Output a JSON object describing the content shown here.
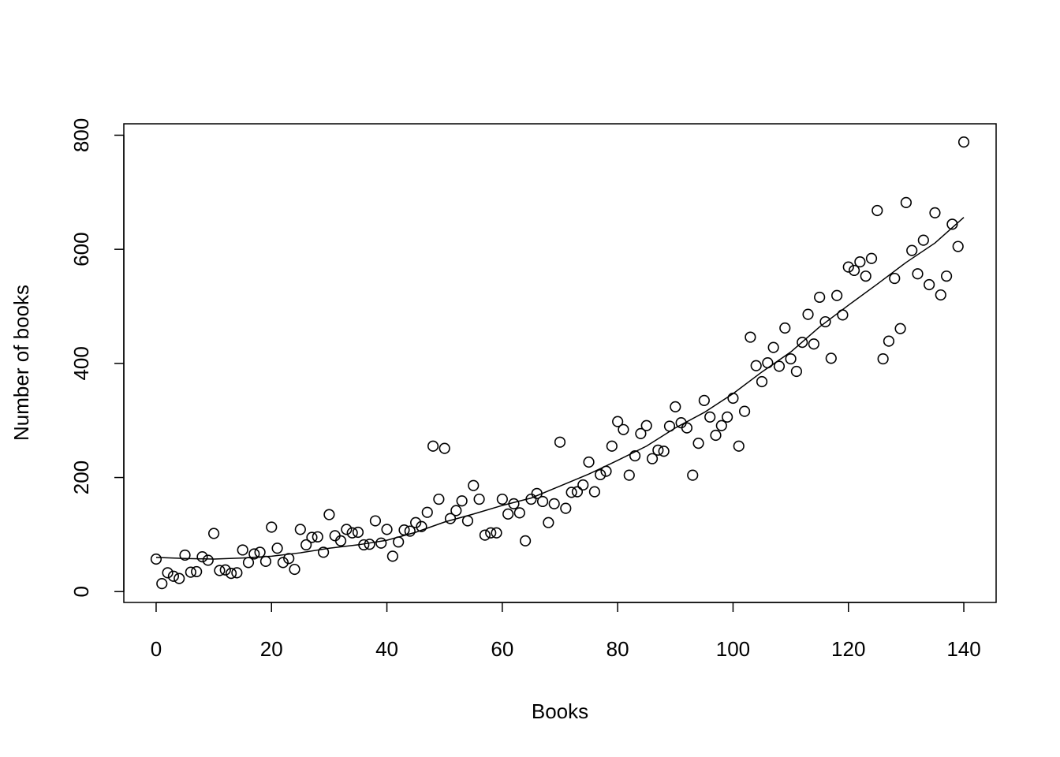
{
  "chart_data": {
    "type": "scatter",
    "xlabel": "Books",
    "ylabel": "Number of books",
    "xlim": [
      -5.6,
      145.6
    ],
    "ylim": [
      -19,
      820
    ],
    "xticks": [
      0,
      20,
      40,
      60,
      80,
      100,
      120,
      140
    ],
    "yticks": [
      0,
      200,
      400,
      600,
      800
    ],
    "xtick_labels": [
      "0",
      "20",
      "40",
      "60",
      "80",
      "100",
      "120",
      "140"
    ],
    "ytick_labels": [
      "0",
      "200",
      "400",
      "600",
      "800"
    ],
    "grid": false,
    "legend": "none",
    "marker": "open-circle",
    "points": [
      [
        0,
        57
      ],
      [
        1,
        14
      ],
      [
        2,
        33
      ],
      [
        3,
        27
      ],
      [
        4,
        23
      ],
      [
        5,
        64
      ],
      [
        6,
        34
      ],
      [
        7,
        35
      ],
      [
        8,
        61
      ],
      [
        9,
        55
      ],
      [
        10,
        102
      ],
      [
        11,
        37
      ],
      [
        12,
        38
      ],
      [
        13,
        32
      ],
      [
        14,
        33
      ],
      [
        15,
        73
      ],
      [
        16,
        51
      ],
      [
        17,
        66
      ],
      [
        18,
        69
      ],
      [
        19,
        53
      ],
      [
        20,
        113
      ],
      [
        21,
        76
      ],
      [
        22,
        51
      ],
      [
        23,
        58
      ],
      [
        24,
        39
      ],
      [
        25,
        109
      ],
      [
        26,
        82
      ],
      [
        27,
        95
      ],
      [
        28,
        96
      ],
      [
        29,
        69
      ],
      [
        30,
        135
      ],
      [
        31,
        98
      ],
      [
        32,
        89
      ],
      [
        33,
        109
      ],
      [
        34,
        103
      ],
      [
        35,
        104
      ],
      [
        36,
        82
      ],
      [
        37,
        83
      ],
      [
        38,
        124
      ],
      [
        39,
        85
      ],
      [
        40,
        109
      ],
      [
        41,
        62
      ],
      [
        42,
        87
      ],
      [
        43,
        108
      ],
      [
        44,
        106
      ],
      [
        45,
        121
      ],
      [
        46,
        114
      ],
      [
        47,
        139
      ],
      [
        48,
        255
      ],
      [
        49,
        162
      ],
      [
        50,
        251
      ],
      [
        51,
        128
      ],
      [
        52,
        142
      ],
      [
        53,
        159
      ],
      [
        54,
        124
      ],
      [
        55,
        186
      ],
      [
        56,
        162
      ],
      [
        57,
        99
      ],
      [
        58,
        103
      ],
      [
        59,
        103
      ],
      [
        60,
        162
      ],
      [
        61,
        136
      ],
      [
        62,
        154
      ],
      [
        63,
        138
      ],
      [
        64,
        89
      ],
      [
        65,
        162
      ],
      [
        66,
        172
      ],
      [
        67,
        158
      ],
      [
        68,
        121
      ],
      [
        69,
        154
      ],
      [
        70,
        262
      ],
      [
        71,
        146
      ],
      [
        72,
        174
      ],
      [
        73,
        175
      ],
      [
        74,
        187
      ],
      [
        75,
        227
      ],
      [
        76,
        175
      ],
      [
        77,
        205
      ],
      [
        78,
        211
      ],
      [
        79,
        255
      ],
      [
        80,
        298
      ],
      [
        81,
        284
      ],
      [
        82,
        204
      ],
      [
        83,
        238
      ],
      [
        84,
        277
      ],
      [
        85,
        291
      ],
      [
        86,
        233
      ],
      [
        87,
        248
      ],
      [
        88,
        246
      ],
      [
        89,
        290
      ],
      [
        90,
        324
      ],
      [
        91,
        296
      ],
      [
        92,
        287
      ],
      [
        93,
        204
      ],
      [
        94,
        260
      ],
      [
        95,
        335
      ],
      [
        96,
        306
      ],
      [
        97,
        274
      ],
      [
        98,
        291
      ],
      [
        99,
        306
      ],
      [
        100,
        339
      ],
      [
        101,
        255
      ],
      [
        102,
        316
      ],
      [
        103,
        446
      ],
      [
        104,
        396
      ],
      [
        105,
        368
      ],
      [
        106,
        401
      ],
      [
        107,
        428
      ],
      [
        108,
        395
      ],
      [
        109,
        462
      ],
      [
        110,
        408
      ],
      [
        111,
        386
      ],
      [
        112,
        437
      ],
      [
        113,
        486
      ],
      [
        114,
        434
      ],
      [
        115,
        516
      ],
      [
        116,
        473
      ],
      [
        117,
        409
      ],
      [
        118,
        519
      ],
      [
        119,
        485
      ],
      [
        120,
        569
      ],
      [
        121,
        563
      ],
      [
        122,
        578
      ],
      [
        123,
        553
      ],
      [
        124,
        584
      ],
      [
        125,
        668
      ],
      [
        126,
        408
      ],
      [
        127,
        439
      ],
      [
        128,
        549
      ],
      [
        129,
        461
      ],
      [
        130,
        682
      ],
      [
        131,
        598
      ],
      [
        132,
        557
      ],
      [
        133,
        616
      ],
      [
        134,
        538
      ],
      [
        135,
        664
      ],
      [
        136,
        520
      ],
      [
        137,
        553
      ],
      [
        138,
        644
      ],
      [
        139,
        605
      ],
      [
        140,
        788
      ]
    ],
    "trend_line": [
      [
        0,
        60
      ],
      [
        5,
        58
      ],
      [
        10,
        57
      ],
      [
        15,
        59
      ],
      [
        20,
        62
      ],
      [
        25,
        68
      ],
      [
        30,
        76
      ],
      [
        35,
        82
      ],
      [
        40,
        90
      ],
      [
        45,
        104
      ],
      [
        50,
        122
      ],
      [
        55,
        136
      ],
      [
        60,
        151
      ],
      [
        65,
        164
      ],
      [
        70,
        185
      ],
      [
        75,
        206
      ],
      [
        80,
        230
      ],
      [
        85,
        255
      ],
      [
        90,
        287
      ],
      [
        95,
        314
      ],
      [
        100,
        347
      ],
      [
        105,
        385
      ],
      [
        110,
        420
      ],
      [
        115,
        464
      ],
      [
        120,
        502
      ],
      [
        125,
        539
      ],
      [
        130,
        577
      ],
      [
        135,
        611
      ],
      [
        140,
        656
      ]
    ]
  }
}
